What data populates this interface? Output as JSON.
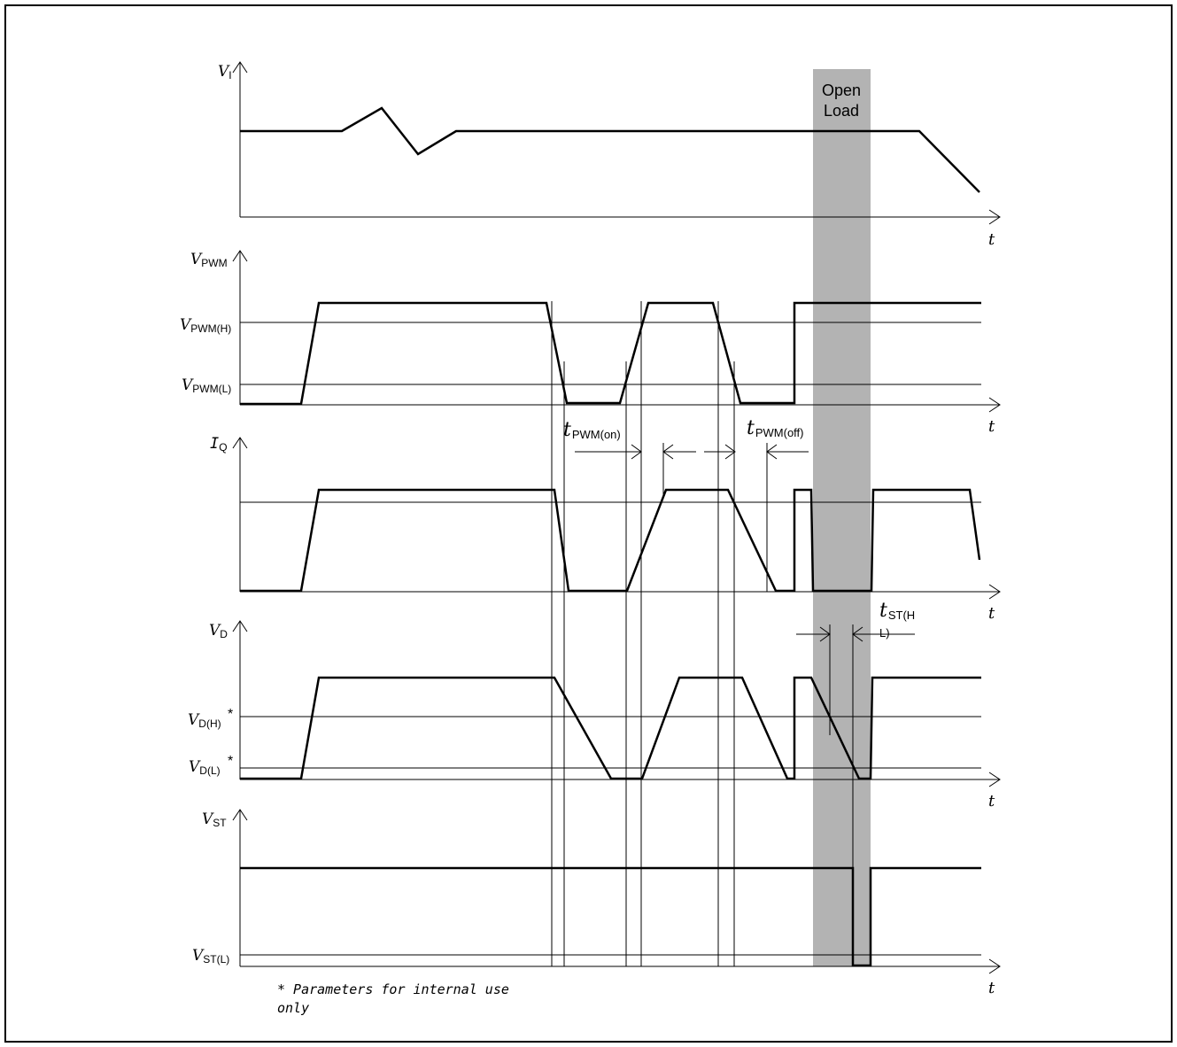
{
  "diagram": {
    "open_load_label": [
      "Open",
      "Load"
    ],
    "time_axis_label": "t",
    "signals": [
      {
        "key": "vi",
        "symbol": "V",
        "subscript": "I"
      },
      {
        "key": "vpwm",
        "symbol": "V",
        "subscript": "PWM",
        "levels": [
          {
            "symbol": "V",
            "subscript": "PWM(H)"
          },
          {
            "symbol": "V",
            "subscript": "PWM(L)"
          }
        ]
      },
      {
        "key": "iq",
        "symbol": "I",
        "subscript": "Q"
      },
      {
        "key": "vd",
        "symbol": "V",
        "subscript": "D",
        "levels": [
          {
            "symbol": "V",
            "subscript": "D(H)",
            "marker": "*"
          },
          {
            "symbol": "V",
            "subscript": "D(L)",
            "marker": "*"
          }
        ]
      },
      {
        "key": "vst",
        "symbol": "V",
        "subscript": "ST",
        "levels": [
          {
            "symbol": "V",
            "subscript": "ST(L)"
          }
        ]
      }
    ],
    "timing_labels": [
      {
        "symbol": "t",
        "subscript": "PWM(on)"
      },
      {
        "symbol": "t",
        "subscript": "PWM(off)"
      },
      {
        "symbol": "t",
        "subscript": "ST(H",
        "subscript_wrap": "L)"
      }
    ],
    "footnote": [
      "* Parameters for internal use",
      "only"
    ]
  }
}
